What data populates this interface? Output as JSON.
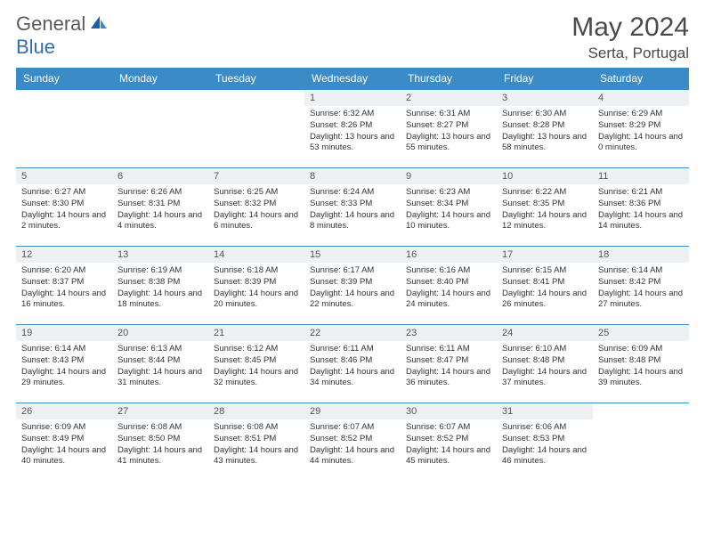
{
  "logo": {
    "part1": "General",
    "part2": "Blue"
  },
  "title": "May 2024",
  "location": "Serta, Portugal",
  "colors": {
    "header_bg": "#3b8bc6",
    "header_text": "#ffffff",
    "daynum_bg": "#eef1f3",
    "border": "#3b8bc6",
    "logo_gray": "#5a5a5a",
    "logo_blue": "#2f6fb0"
  },
  "weekdays": [
    "Sunday",
    "Monday",
    "Tuesday",
    "Wednesday",
    "Thursday",
    "Friday",
    "Saturday"
  ],
  "weeks": [
    [
      null,
      null,
      null,
      {
        "n": "1",
        "sr": "6:32 AM",
        "ss": "8:26 PM",
        "dl": "13 hours and 53 minutes."
      },
      {
        "n": "2",
        "sr": "6:31 AM",
        "ss": "8:27 PM",
        "dl": "13 hours and 55 minutes."
      },
      {
        "n": "3",
        "sr": "6:30 AM",
        "ss": "8:28 PM",
        "dl": "13 hours and 58 minutes."
      },
      {
        "n": "4",
        "sr": "6:29 AM",
        "ss": "8:29 PM",
        "dl": "14 hours and 0 minutes."
      }
    ],
    [
      {
        "n": "5",
        "sr": "6:27 AM",
        "ss": "8:30 PM",
        "dl": "14 hours and 2 minutes."
      },
      {
        "n": "6",
        "sr": "6:26 AM",
        "ss": "8:31 PM",
        "dl": "14 hours and 4 minutes."
      },
      {
        "n": "7",
        "sr": "6:25 AM",
        "ss": "8:32 PM",
        "dl": "14 hours and 6 minutes."
      },
      {
        "n": "8",
        "sr": "6:24 AM",
        "ss": "8:33 PM",
        "dl": "14 hours and 8 minutes."
      },
      {
        "n": "9",
        "sr": "6:23 AM",
        "ss": "8:34 PM",
        "dl": "14 hours and 10 minutes."
      },
      {
        "n": "10",
        "sr": "6:22 AM",
        "ss": "8:35 PM",
        "dl": "14 hours and 12 minutes."
      },
      {
        "n": "11",
        "sr": "6:21 AM",
        "ss": "8:36 PM",
        "dl": "14 hours and 14 minutes."
      }
    ],
    [
      {
        "n": "12",
        "sr": "6:20 AM",
        "ss": "8:37 PM",
        "dl": "14 hours and 16 minutes."
      },
      {
        "n": "13",
        "sr": "6:19 AM",
        "ss": "8:38 PM",
        "dl": "14 hours and 18 minutes."
      },
      {
        "n": "14",
        "sr": "6:18 AM",
        "ss": "8:39 PM",
        "dl": "14 hours and 20 minutes."
      },
      {
        "n": "15",
        "sr": "6:17 AM",
        "ss": "8:39 PM",
        "dl": "14 hours and 22 minutes."
      },
      {
        "n": "16",
        "sr": "6:16 AM",
        "ss": "8:40 PM",
        "dl": "14 hours and 24 minutes."
      },
      {
        "n": "17",
        "sr": "6:15 AM",
        "ss": "8:41 PM",
        "dl": "14 hours and 26 minutes."
      },
      {
        "n": "18",
        "sr": "6:14 AM",
        "ss": "8:42 PM",
        "dl": "14 hours and 27 minutes."
      }
    ],
    [
      {
        "n": "19",
        "sr": "6:14 AM",
        "ss": "8:43 PM",
        "dl": "14 hours and 29 minutes."
      },
      {
        "n": "20",
        "sr": "6:13 AM",
        "ss": "8:44 PM",
        "dl": "14 hours and 31 minutes."
      },
      {
        "n": "21",
        "sr": "6:12 AM",
        "ss": "8:45 PM",
        "dl": "14 hours and 32 minutes."
      },
      {
        "n": "22",
        "sr": "6:11 AM",
        "ss": "8:46 PM",
        "dl": "14 hours and 34 minutes."
      },
      {
        "n": "23",
        "sr": "6:11 AM",
        "ss": "8:47 PM",
        "dl": "14 hours and 36 minutes."
      },
      {
        "n": "24",
        "sr": "6:10 AM",
        "ss": "8:48 PM",
        "dl": "14 hours and 37 minutes."
      },
      {
        "n": "25",
        "sr": "6:09 AM",
        "ss": "8:48 PM",
        "dl": "14 hours and 39 minutes."
      }
    ],
    [
      {
        "n": "26",
        "sr": "6:09 AM",
        "ss": "8:49 PM",
        "dl": "14 hours and 40 minutes."
      },
      {
        "n": "27",
        "sr": "6:08 AM",
        "ss": "8:50 PM",
        "dl": "14 hours and 41 minutes."
      },
      {
        "n": "28",
        "sr": "6:08 AM",
        "ss": "8:51 PM",
        "dl": "14 hours and 43 minutes."
      },
      {
        "n": "29",
        "sr": "6:07 AM",
        "ss": "8:52 PM",
        "dl": "14 hours and 44 minutes."
      },
      {
        "n": "30",
        "sr": "6:07 AM",
        "ss": "8:52 PM",
        "dl": "14 hours and 45 minutes."
      },
      {
        "n": "31",
        "sr": "6:06 AM",
        "ss": "8:53 PM",
        "dl": "14 hours and 46 minutes."
      },
      null
    ]
  ],
  "labels": {
    "sunrise": "Sunrise:",
    "sunset": "Sunset:",
    "daylight": "Daylight:"
  }
}
